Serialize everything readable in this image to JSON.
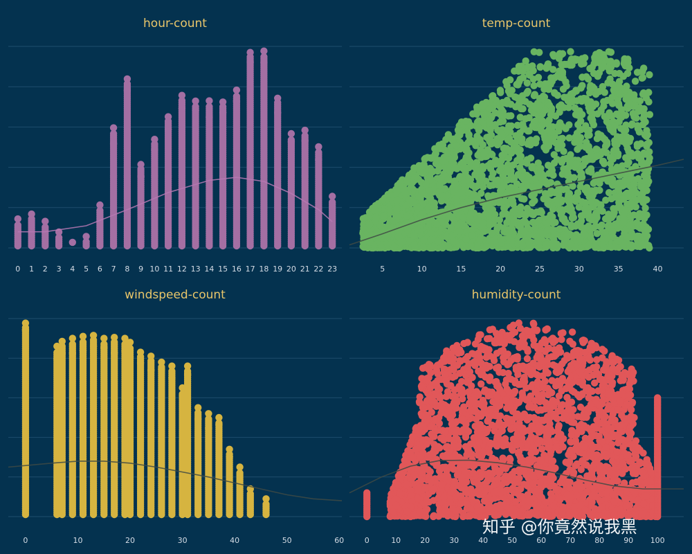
{
  "watermark": "知乎 @你竟然说我黑",
  "chart_data": [
    {
      "type": "scatter",
      "title": "hour-count",
      "color": "#a46fa3",
      "x_ticks": [
        "0",
        "1",
        "2",
        "3",
        "4",
        "5",
        "6",
        "7",
        "8",
        "9",
        "10",
        "11",
        "12",
        "13",
        "14",
        "15",
        "16",
        "17",
        "18",
        "19",
        "20",
        "21",
        "22",
        "23"
      ],
      "xlim": [
        -0.7,
        23.7
      ],
      "ylim": [
        0,
        1000
      ],
      "grid": true,
      "columns": [
        {
          "x": 0,
          "max": 144
        },
        {
          "x": 1,
          "max": 168
        },
        {
          "x": 2,
          "max": 132
        },
        {
          "x": 3,
          "max": 79
        },
        {
          "x": 4,
          "max": 28
        },
        {
          "x": 5,
          "max": 57
        },
        {
          "x": 6,
          "max": 213
        },
        {
          "x": 7,
          "max": 596
        },
        {
          "x": 8,
          "max": 839
        },
        {
          "x": 9,
          "max": 414
        },
        {
          "x": 10,
          "max": 539
        },
        {
          "x": 11,
          "max": 651
        },
        {
          "x": 12,
          "max": 757
        },
        {
          "x": 13,
          "max": 729
        },
        {
          "x": 14,
          "max": 730
        },
        {
          "x": 15,
          "max": 724
        },
        {
          "x": 16,
          "max": 783
        },
        {
          "x": 17,
          "max": 970
        },
        {
          "x": 18,
          "max": 977
        },
        {
          "x": 19,
          "max": 743
        },
        {
          "x": 20,
          "max": 567
        },
        {
          "x": 21,
          "max": 584
        },
        {
          "x": 22,
          "max": 502
        },
        {
          "x": 23,
          "max": 256
        }
      ],
      "trend": [
        [
          0,
          80
        ],
        [
          2,
          80
        ],
        [
          5,
          110
        ],
        [
          8,
          190
        ],
        [
          11,
          275
        ],
        [
          14,
          335
        ],
        [
          16,
          350
        ],
        [
          18,
          330
        ],
        [
          20,
          270
        ],
        [
          22,
          190
        ],
        [
          23,
          130
        ]
      ]
    },
    {
      "type": "scatter",
      "title": "temp-count",
      "color": "#69b461",
      "x_ticks": [
        "5",
        "10",
        "15",
        "20",
        "25",
        "30",
        "35",
        "40"
      ],
      "xlim": [
        0.8,
        43.3
      ],
      "ylim": [
        0,
        1000
      ],
      "grid": true,
      "trend": [
        [
          0.8,
          15
        ],
        [
          5,
          70
        ],
        [
          10,
          140
        ],
        [
          15,
          200
        ],
        [
          20,
          250
        ],
        [
          25,
          290
        ],
        [
          30,
          330
        ],
        [
          35,
          370
        ],
        [
          40,
          410
        ],
        [
          43.3,
          440
        ]
      ]
    },
    {
      "type": "scatter",
      "title": "windspeed-count",
      "color": "#d6b440",
      "x_ticks": [
        "0",
        "10",
        "20",
        "30",
        "40",
        "50",
        "60"
      ],
      "xlim": [
        -3.3,
        60.5
      ],
      "ylim": [
        0,
        1000
      ],
      "grid": true,
      "columns": [
        {
          "x": 0,
          "max": 977
        },
        {
          "x": 6,
          "max": 860
        },
        {
          "x": 7,
          "max": 885
        },
        {
          "x": 8.98,
          "max": 900
        },
        {
          "x": 11,
          "max": 910
        },
        {
          "x": 13,
          "max": 915
        },
        {
          "x": 15,
          "max": 900
        },
        {
          "x": 16.98,
          "max": 905
        },
        {
          "x": 19,
          "max": 900
        },
        {
          "x": 19.99,
          "max": 880
        },
        {
          "x": 22,
          "max": 830
        },
        {
          "x": 24,
          "max": 810
        },
        {
          "x": 26,
          "max": 780
        },
        {
          "x": 27.99,
          "max": 760
        },
        {
          "x": 30,
          "max": 650
        },
        {
          "x": 31,
          "max": 760
        },
        {
          "x": 33,
          "max": 550
        },
        {
          "x": 35,
          "max": 520
        },
        {
          "x": 36.99,
          "max": 500
        },
        {
          "x": 39,
          "max": 340
        },
        {
          "x": 40.99,
          "max": 250
        },
        {
          "x": 43,
          "max": 140
        },
        {
          "x": 46,
          "max": 90
        }
      ],
      "trend": [
        [
          -3.3,
          250
        ],
        [
          5,
          270
        ],
        [
          10,
          280
        ],
        [
          15,
          280
        ],
        [
          20,
          270
        ],
        [
          25,
          250
        ],
        [
          30,
          225
        ],
        [
          35,
          200
        ],
        [
          40,
          170
        ],
        [
          45,
          140
        ],
        [
          50,
          110
        ],
        [
          55,
          90
        ],
        [
          60.5,
          80
        ]
      ]
    },
    {
      "type": "scatter",
      "title": "humidity-count",
      "color": "#e15759",
      "x_ticks": [
        "0",
        "10",
        "20",
        "30",
        "40",
        "50",
        "60",
        "70",
        "80",
        "90",
        "100"
      ],
      "xlim": [
        -6,
        109
      ],
      "ylim": [
        0,
        1000
      ],
      "grid": true,
      "trend": [
        [
          -6,
          120
        ],
        [
          5,
          200
        ],
        [
          15,
          255
        ],
        [
          25,
          283
        ],
        [
          35,
          285
        ],
        [
          45,
          272
        ],
        [
          55,
          250
        ],
        [
          65,
          220
        ],
        [
          75,
          185
        ],
        [
          85,
          155
        ],
        [
          95,
          140
        ],
        [
          109,
          140
        ]
      ]
    }
  ]
}
